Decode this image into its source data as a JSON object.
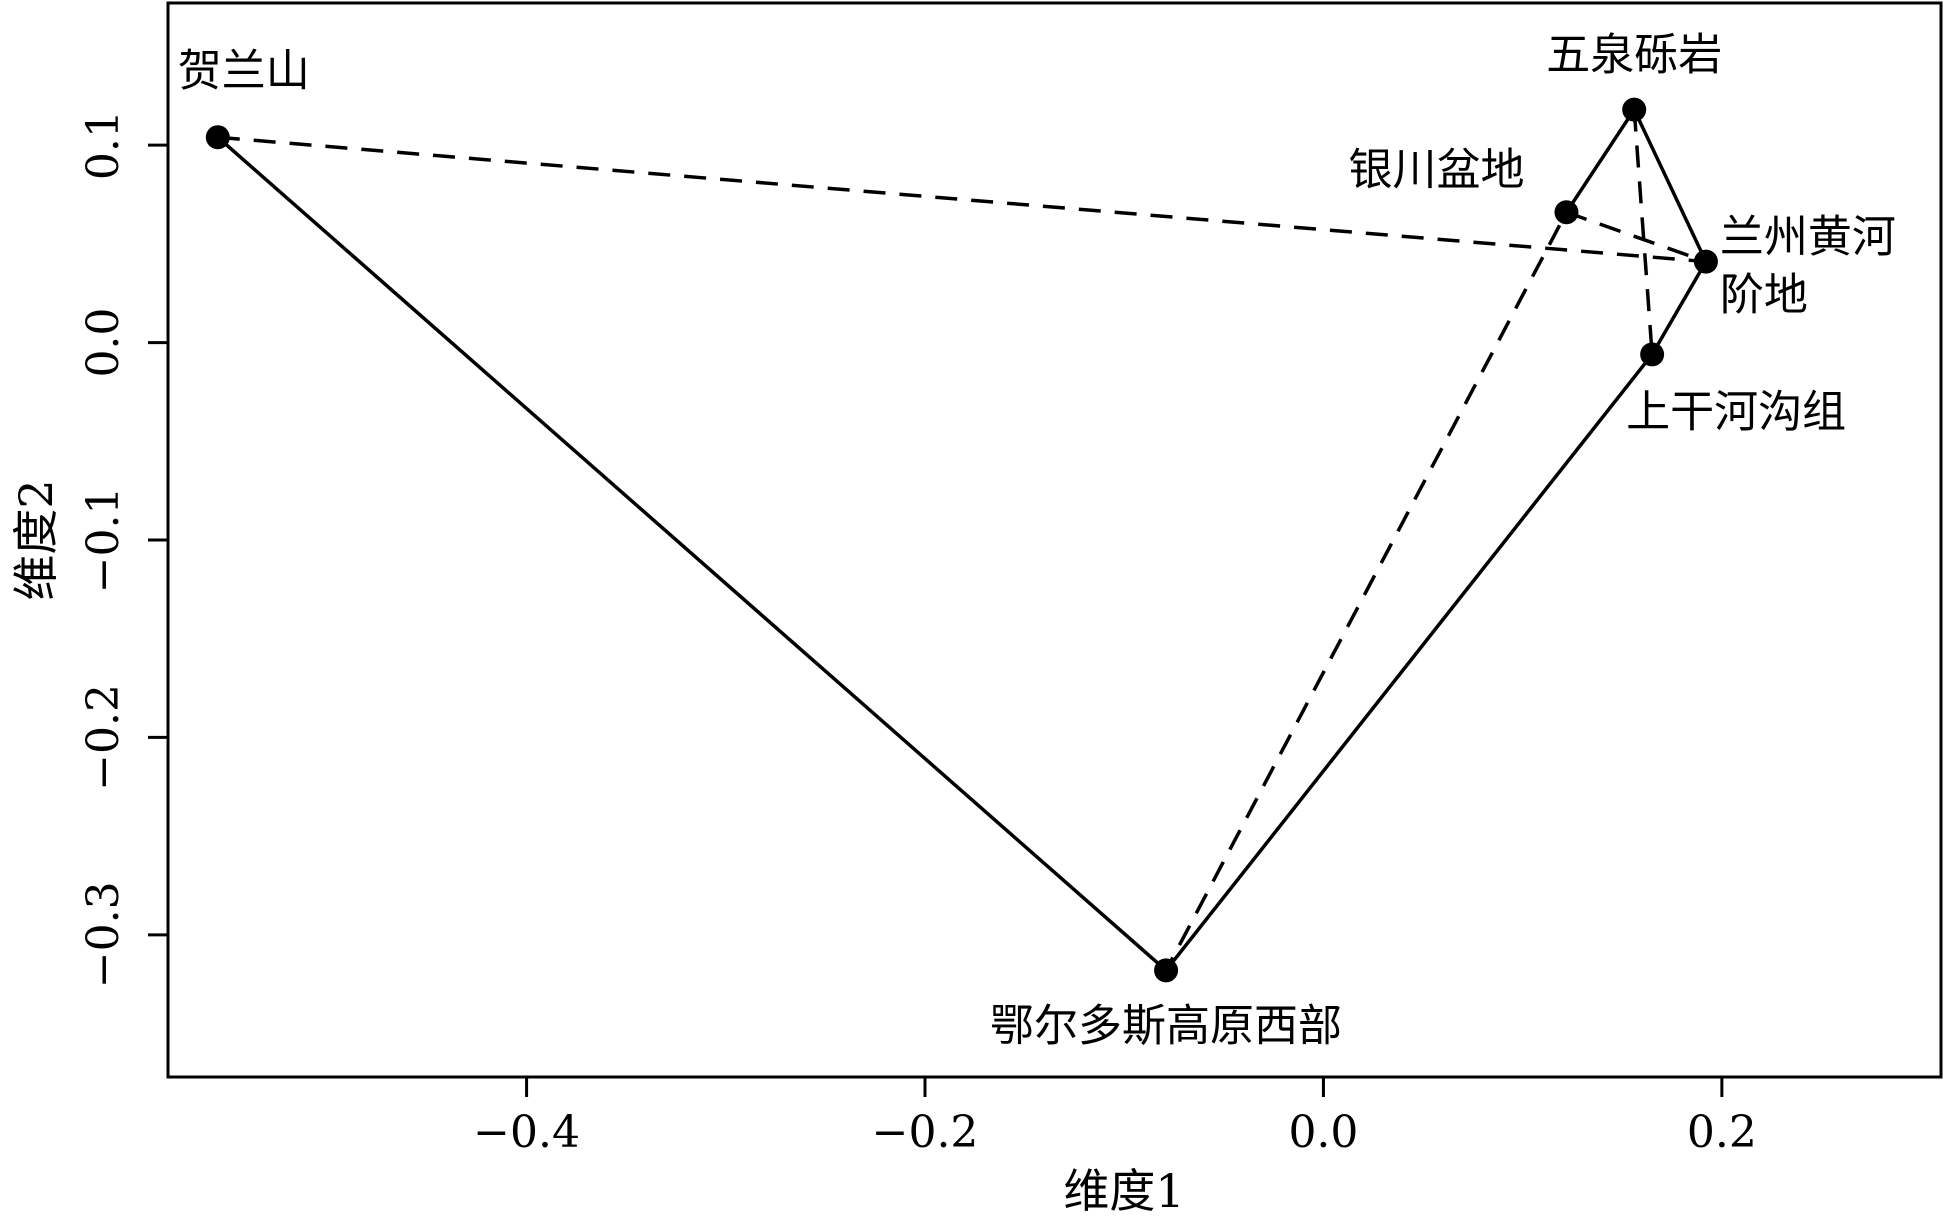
{
  "chart_data": {
    "type": "scatter",
    "xlabel": "维度1",
    "ylabel": "维度2",
    "xlim": [
      -0.58,
      0.31
    ],
    "ylim": [
      -0.372,
      0.172
    ],
    "xticks": [
      -0.4,
      -0.2,
      0.0,
      0.2
    ],
    "xtick_labels": [
      "−0.4",
      "−0.2",
      "0.0",
      "0.2"
    ],
    "yticks": [
      -0.3,
      -0.2,
      -0.1,
      0.0,
      0.1
    ],
    "ytick_labels": [
      "−0.3",
      "−0.2",
      "−0.1",
      "0.0",
      "0.1"
    ],
    "points": [
      {
        "id": "helanshan",
        "label_lines": [
          "贺兰山"
        ],
        "x": -0.555,
        "y": 0.104
      },
      {
        "id": "wuquan",
        "label_lines": [
          "五泉砾岩"
        ],
        "x": 0.156,
        "y": 0.118
      },
      {
        "id": "yinchuan",
        "label_lines": [
          "银川盆地"
        ],
        "x": 0.122,
        "y": 0.066
      },
      {
        "id": "lanzhou",
        "label_lines": [
          "兰州黄河",
          "阶地"
        ],
        "x": 0.192,
        "y": 0.041
      },
      {
        "id": "shanggan",
        "label_lines": [
          "上干河沟组"
        ],
        "x": 0.165,
        "y": -0.006
      },
      {
        "id": "eerduosi",
        "label_lines": [
          "鄂尔多斯高原西部"
        ],
        "x": -0.079,
        "y": -0.318
      }
    ],
    "solid_path": [
      "helanshan",
      "eerduosi",
      "shanggan",
      "lanzhou",
      "wuquan",
      "yinchuan"
    ],
    "dashed_path": [
      "helanshan",
      "lanzhou",
      "yinchuan",
      "eerduosi"
    ],
    "dashed_extra": [
      [
        "wuquan",
        "shanggan"
      ]
    ],
    "grid": false,
    "colors": {
      "line": "#000000",
      "point": "#000000",
      "background": "#ffffff"
    }
  }
}
